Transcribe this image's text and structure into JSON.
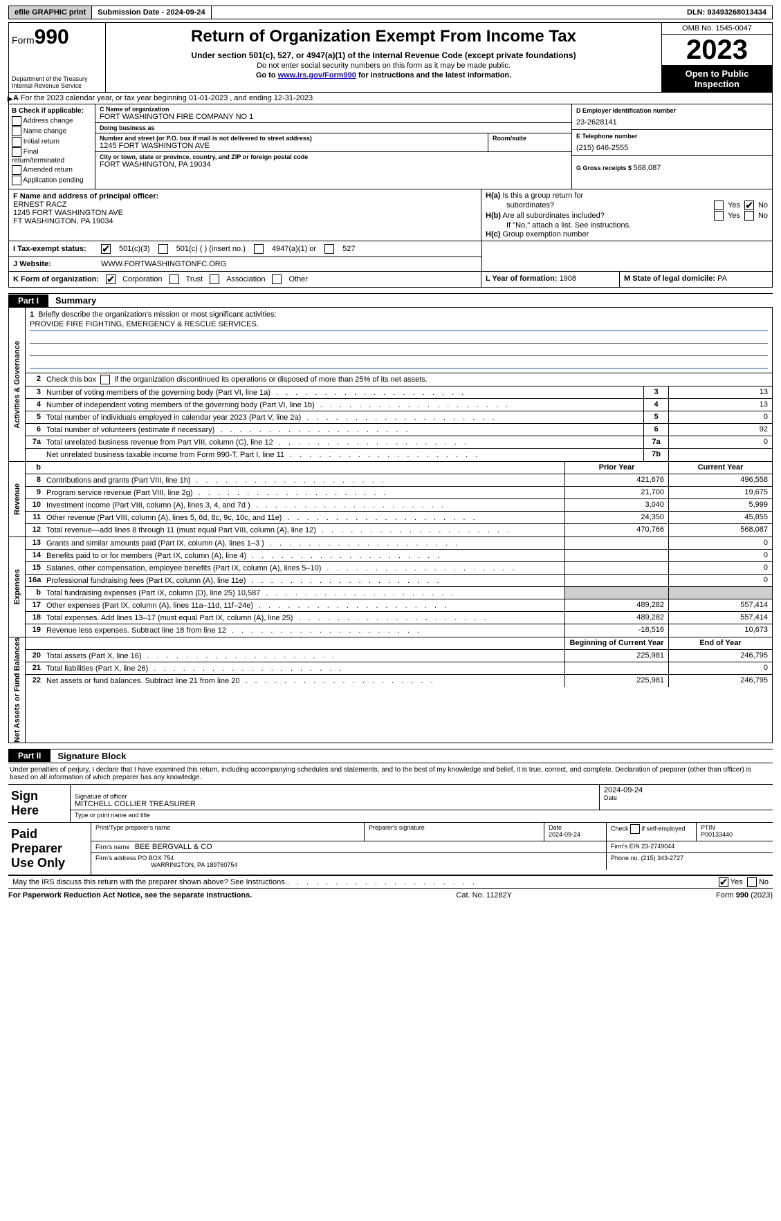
{
  "toolbar": {
    "efile": "efile GRAPHIC print",
    "submission_label": "Submission Date - ",
    "submission_date": "2024-09-24",
    "dln_label": "DLN: ",
    "dln": "93493268013434"
  },
  "header": {
    "form_prefix": "Form",
    "form_number": "990",
    "dept": "Department of the Treasury\nInternal Revenue Service",
    "title": "Return of Organization Exempt From Income Tax",
    "sub1": "Under section 501(c), 527, or 4947(a)(1) of the Internal Revenue Code (except private foundations)",
    "sub2": "Do not enter social security numbers on this form as it may be made public.",
    "sub3_pre": "Go to ",
    "sub3_link": "www.irs.gov/Form990",
    "sub3_post": " for instructions and the latest information.",
    "omb": "OMB No. 1545-0047",
    "year": "2023",
    "inspection": "Open to Public Inspection"
  },
  "line_a": "For the 2023 calendar year, or tax year beginning 01-01-2023   , and ending 12-31-2023",
  "box_b": {
    "title": "B Check if applicable:",
    "opts": [
      "Address change",
      "Name change",
      "Initial return",
      "Final return/terminated",
      "Amended return",
      "Application pending"
    ]
  },
  "box_c": {
    "name_lbl": "C Name of organization",
    "name": "FORT WASHINGTON FIRE COMPANY NO 1",
    "dba_lbl": "Doing business as",
    "dba": "",
    "street_lbl": "Number and street (or P.O. box if mail is not delivered to street address)",
    "street": "1245 FORT WASHINGTON AVE",
    "room_lbl": "Room/suite",
    "room": "",
    "city_lbl": "City or town, state or province, country, and ZIP or foreign postal code",
    "city": "FORT WASHINGTON, PA  19034"
  },
  "box_d": {
    "lbl": "D Employer identification number",
    "val": "23-2628141"
  },
  "box_e": {
    "lbl": "E Telephone number",
    "val": "(215) 646-2555"
  },
  "box_g": {
    "lbl": "G Gross receipts $ ",
    "val": "568,087"
  },
  "box_f": {
    "lbl": "F  Name and address of principal officer:",
    "name": "ERNEST RACZ",
    "street": "1245 FORT WASHINGTON AVE",
    "city": "FT WASHINGTON, PA  19034"
  },
  "box_h": {
    "a_lbl": "H(a)  Is this a group return for subordinates?",
    "b_lbl": "H(b)  Are all subordinates included?",
    "b_note": "If \"No,\" attach a list. See instructions.",
    "c_lbl": "H(c)  Group exemption number",
    "yes": "Yes",
    "no": "No"
  },
  "tax_exempt": {
    "lbl": "I   Tax-exempt status:",
    "o1": "501(c)(3)",
    "o2": "501(c) (  ) (insert no.)",
    "o3": "4947(a)(1) or",
    "o4": "527"
  },
  "website": {
    "lbl": "J   Website:",
    "val": "WWW.FORTWASHINGTONFC.ORG"
  },
  "line_k": {
    "lbl": "K Form of organization:",
    "opts": [
      "Corporation",
      "Trust",
      "Association",
      "Other"
    ],
    "checked": 0
  },
  "line_l": {
    "lbl": "L Year of formation: ",
    "val": "1908"
  },
  "line_m": {
    "lbl": "M State of legal domicile: ",
    "val": "PA"
  },
  "part1": {
    "tag": "Part I",
    "title": "Summary"
  },
  "mission_lbl": "Briefly describe the organization's mission or most significant activities:",
  "mission_txt": "PROVIDE FIRE FIGHTING, EMERGENCY & RESCUE SERVICES.",
  "line2": "Check this box       if the organization discontinued its operations or disposed of more than 25% of its net assets.",
  "gov_rows": [
    {
      "n": "3",
      "d": "Number of voting members of the governing body (Part VI, line 1a)",
      "c": "3",
      "v": "13"
    },
    {
      "n": "4",
      "d": "Number of independent voting members of the governing body (Part VI, line 1b)",
      "c": "4",
      "v": "13"
    },
    {
      "n": "5",
      "d": "Total number of individuals employed in calendar year 2023 (Part V, line 2a)",
      "c": "5",
      "v": "0"
    },
    {
      "n": "6",
      "d": "Total number of volunteers (estimate if necessary)",
      "c": "6",
      "v": "92"
    },
    {
      "n": "7a",
      "d": "Total unrelated business revenue from Part VIII, column (C), line 12",
      "c": "7a",
      "v": "0"
    },
    {
      "n": "",
      "d": "Net unrelated business taxable income from Form 990-T, Part I, line 11",
      "c": "7b",
      "v": ""
    }
  ],
  "col_hdr": {
    "prior": "Prior Year",
    "current": "Current Year",
    "begin": "Beginning of Current Year",
    "end": "End of Year"
  },
  "rev_rows": [
    {
      "n": "8",
      "d": "Contributions and grants (Part VIII, line 1h)",
      "p": "421,676",
      "c": "496,558"
    },
    {
      "n": "9",
      "d": "Program service revenue (Part VIII, line 2g)",
      "p": "21,700",
      "c": "19,675"
    },
    {
      "n": "10",
      "d": "Investment income (Part VIII, column (A), lines 3, 4, and 7d )",
      "p": "3,040",
      "c": "5,999"
    },
    {
      "n": "11",
      "d": "Other revenue (Part VIII, column (A), lines 5, 6d, 8c, 9c, 10c, and 11e)",
      "p": "24,350",
      "c": "45,855"
    },
    {
      "n": "12",
      "d": "Total revenue—add lines 8 through 11 (must equal Part VIII, column (A), line 12)",
      "p": "470,766",
      "c": "568,087"
    }
  ],
  "exp_rows": [
    {
      "n": "13",
      "d": "Grants and similar amounts paid (Part IX, column (A), lines 1–3 )",
      "p": "",
      "c": "0"
    },
    {
      "n": "14",
      "d": "Benefits paid to or for members (Part IX, column (A), line 4)",
      "p": "",
      "c": "0"
    },
    {
      "n": "15",
      "d": "Salaries, other compensation, employee benefits (Part IX, column (A), lines 5–10)",
      "p": "",
      "c": "0"
    },
    {
      "n": "16a",
      "d": "Professional fundraising fees (Part IX, column (A), line 11e)",
      "p": "",
      "c": "0"
    },
    {
      "n": "b",
      "d": "Total fundraising expenses (Part IX, column (D), line 25) 10,587",
      "p": "SHADE",
      "c": "SHADE"
    },
    {
      "n": "17",
      "d": "Other expenses (Part IX, column (A), lines 11a–11d, 11f–24e)",
      "p": "489,282",
      "c": "557,414"
    },
    {
      "n": "18",
      "d": "Total expenses. Add lines 13–17 (must equal Part IX, column (A), line 25)",
      "p": "489,282",
      "c": "557,414"
    },
    {
      "n": "19",
      "d": "Revenue less expenses. Subtract line 18 from line 12",
      "p": "-18,516",
      "c": "10,673"
    }
  ],
  "na_rows": [
    {
      "n": "20",
      "d": "Total assets (Part X, line 16)",
      "p": "225,981",
      "c": "246,795"
    },
    {
      "n": "21",
      "d": "Total liabilities (Part X, line 26)",
      "p": "",
      "c": "0"
    },
    {
      "n": "22",
      "d": "Net assets or fund balances. Subtract line 21 from line 20",
      "p": "225,981",
      "c": "246,795"
    }
  ],
  "part2": {
    "tag": "Part II",
    "title": "Signature Block"
  },
  "sig_intro": "Under penalties of perjury, I declare that I have examined this return, including accompanying schedules and statements, and to the best of my knowledge and belief, it is true, correct, and complete. Declaration of preparer (other than officer) is based on all information of which preparer has any knowledge.",
  "sign_here": "Sign Here",
  "sig": {
    "officer_sig_lbl": "Signature of officer",
    "date_lbl": "Date",
    "sig_date": "2024-09-24",
    "officer_name": "MITCHELL COLLIER  TREASURER",
    "name_lbl": "Type or print name and title"
  },
  "paid_lbl": "Paid Preparer Use Only",
  "prep": {
    "name_lbl": "Print/Type preparer's name",
    "sig_lbl": "Preparer's signature",
    "date_lbl": "Date",
    "date": "2024-09-24",
    "self_lbl": "Check         if self-employed",
    "ptin_lbl": "PTIN",
    "ptin": "P00133440",
    "firm_name_lbl": "Firm's name",
    "firm_name": "BEE BERGVALL & CO",
    "firm_ein_lbl": "Firm's EIN",
    "firm_ein": "23-2749044",
    "firm_addr_lbl": "Firm's address",
    "firm_addr1": "PO BOX 754",
    "firm_addr2": "WARRINGTON, PA  189760754",
    "phone_lbl": "Phone no.",
    "phone": "(215) 343-2727"
  },
  "discuss": "May the IRS discuss this return with the preparer shown above? See Instructions.",
  "footer": {
    "left": "For Paperwork Reduction Act Notice, see the separate instructions.",
    "mid": "Cat. No. 11282Y",
    "right_pre": "Form ",
    "right_form": "990",
    "right_year": " (2023)"
  },
  "dots": ".  .  .  .  .  .  .  .  .  .  .  .  .  .  .  .  .  .  .  ."
}
